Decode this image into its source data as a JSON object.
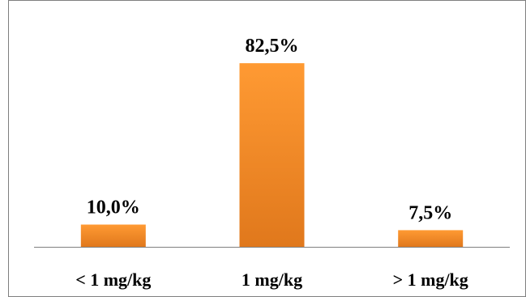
{
  "chart_data": {
    "type": "bar",
    "categories": [
      "< 1 mg/kg",
      "1 mg/kg",
      "> 1 mg/kg"
    ],
    "values": [
      10.0,
      82.5,
      7.5
    ],
    "data_labels": [
      "10,0%",
      "82,5%",
      "7,5%"
    ],
    "title": "",
    "xlabel": "",
    "ylabel": "",
    "ylim": [
      0,
      100
    ],
    "grid": false,
    "legend": "none",
    "colors": {
      "bar_top": "#FF9A33",
      "bar_bottom": "#E0781C",
      "axis": "#808080",
      "frame": "#7F7F7F"
    }
  }
}
